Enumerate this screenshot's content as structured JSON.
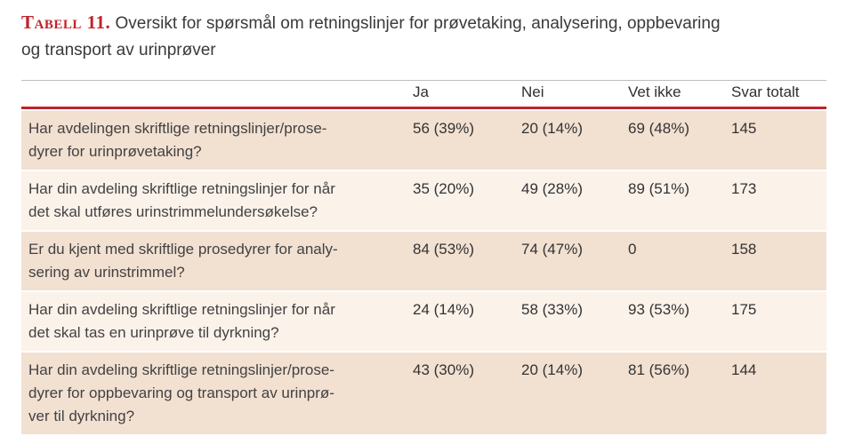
{
  "title": {
    "label": "Tabell 11.",
    "text": "Oversikt for spørsmål om retningslinjer for prøvetaking, analysering, oppbevaring\nog transport av urinprøver"
  },
  "table": {
    "columns": [
      "Ja",
      "Nei",
      "Vet ikke",
      "Svar totalt"
    ],
    "rows": [
      {
        "question": "Har avdelingen skriftlige retningslinjer/prose-\ndyrer for urinprøvetaking?",
        "values": [
          "56 (39%)",
          "20 (14%)",
          "69 (48%)",
          "145"
        ]
      },
      {
        "question": "Har din avdeling skriftlige retningslinjer for når\ndet skal utføres urinstrimmelundersøkelse?",
        "values": [
          "35 (20%)",
          "49 (28%)",
          "89 (51%)",
          "173"
        ]
      },
      {
        "question": "Er du kjent med skriftlige prosedyrer for analy-\nsering av urinstrimmel?",
        "values": [
          "84 (53%)",
          "74 (47%)",
          "0",
          "158"
        ]
      },
      {
        "question": "Har din avdeling skriftlige retningslinjer for når\ndet skal tas en urinprøve til dyrkning?",
        "values": [
          "24 (14%)",
          "58 (33%)",
          "93 (53%)",
          "175"
        ]
      },
      {
        "question": "Har din avdeling skriftlige retningslinjer/prose-\ndyrer for oppbevaring og transport av urinprø-\nver til dyrkning?",
        "values": [
          "43 (30%)",
          "20 (14%)",
          "81 (56%)",
          "144"
        ]
      }
    ]
  },
  "colors": {
    "accent_red": "#c32128",
    "row_dark": "#f2e0d1",
    "row_light": "#fbf2ea",
    "rule_gray": "#bdbdbd",
    "text": "#3c3c3c"
  }
}
